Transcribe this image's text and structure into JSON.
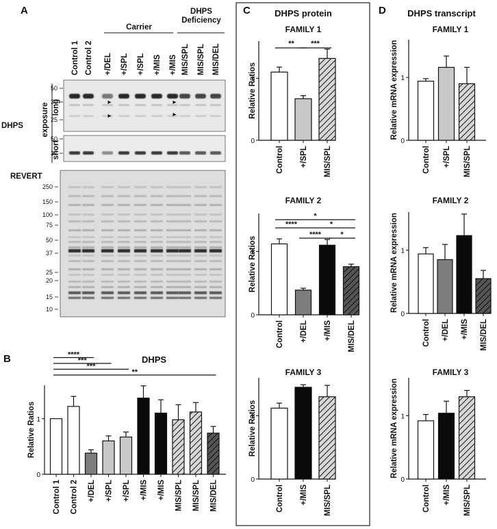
{
  "panel_letters": {
    "a": "A",
    "b": "B",
    "c": "C",
    "d": "D"
  },
  "blot": {
    "lane_labels": [
      "Control 1",
      "Control 2",
      "+/DEL",
      "+/SPL",
      "+/SPL",
      "+/MIS",
      "+/MIS",
      "MIS/SPL",
      "MIS/SPL",
      "MIS/DEL"
    ],
    "group_carrier": "Carrier",
    "group_deficiency_line1": "DHPS",
    "group_deficiency_line2": "Deficiency",
    "protein_label": "DHPS",
    "exposure_label": "exposure",
    "long_label": "long",
    "short_label": "short",
    "revert_label": "REVERT",
    "long_mw": [
      "50",
      "37",
      "25"
    ],
    "short_mw": [
      "50",
      "37"
    ],
    "revert_mw": [
      "250",
      "150",
      "100",
      "75",
      "50",
      "37",
      "25",
      "20",
      "15",
      "10"
    ],
    "arrowhead_marker": "▸"
  },
  "chart_data": [
    {
      "id": "B",
      "type": "bar",
      "title": "DHPS",
      "ylabel": "Relative Ratios",
      "ylim": [
        0,
        1.6
      ],
      "yticks": [
        "0",
        "1"
      ],
      "categories": [
        "Control 1",
        "Control 2",
        "+/DEL",
        "+/SPL",
        "+/SPL",
        "+/MIS",
        "+/MIS",
        "MIS/SPL",
        "MIS/SPL",
        "MIS/DEL"
      ],
      "values": [
        1.0,
        1.22,
        0.38,
        0.6,
        0.67,
        1.37,
        1.1,
        0.98,
        1.12,
        0.74
      ],
      "errors": [
        0.0,
        0.18,
        0.06,
        0.09,
        0.09,
        0.22,
        0.24,
        0.27,
        0.17,
        0.12
      ],
      "fills": [
        "white",
        "white",
        "gray",
        "lightgray",
        "lightgray",
        "black",
        "black",
        "hatch",
        "hatch",
        "darkhatch"
      ],
      "significance": [
        {
          "from": 0,
          "to": 2,
          "label": "****"
        },
        {
          "from": 0,
          "to": 3,
          "label": "***"
        },
        {
          "from": 0,
          "to": 4,
          "label": "***"
        },
        {
          "from": 0,
          "to": 9,
          "label": "**"
        }
      ]
    },
    {
      "id": "C1",
      "type": "bar",
      "panel_title": "DHPS protein",
      "title": "FAMILY 1",
      "ylabel": "Relative Ratios",
      "ylim": [
        0,
        1.6
      ],
      "yticks": [
        "0",
        "1"
      ],
      "categories": [
        "Control",
        "+/SPL",
        "MIS/SPL"
      ],
      "values": [
        1.1,
        0.67,
        1.32
      ],
      "errors": [
        0.08,
        0.05,
        0.15
      ],
      "fills": [
        "white",
        "lightgray",
        "hatch"
      ],
      "significance": [
        {
          "from": 0,
          "to": 1,
          "label": "**"
        },
        {
          "from": 1,
          "to": 2,
          "label": "***"
        }
      ]
    },
    {
      "id": "C2",
      "type": "bar",
      "title": "FAMILY 2",
      "ylabel": "Relative Ratios",
      "ylim": [
        0,
        1.6
      ],
      "yticks": [
        "0",
        "1"
      ],
      "categories": [
        "Control",
        "+/DEL",
        "+/MIS",
        "MIS/DEL"
      ],
      "values": [
        1.12,
        0.39,
        1.1,
        0.76
      ],
      "errors": [
        0.08,
        0.03,
        0.09,
        0.04
      ],
      "fills": [
        "white",
        "gray",
        "black",
        "darkhatch"
      ],
      "significance": [
        {
          "from": 0,
          "to": 1,
          "label": "****"
        },
        {
          "from": 0,
          "to": 3,
          "label": "*"
        },
        {
          "from": 1,
          "to": 2,
          "label": "****"
        },
        {
          "from": 1,
          "to": 3,
          "label": "*"
        },
        {
          "from": 2,
          "to": 3,
          "label": "*"
        }
      ]
    },
    {
      "id": "C3",
      "type": "bar",
      "title": "FAMILY 3",
      "ylabel": "Relative Ratios",
      "ylim": [
        0,
        1.6
      ],
      "yticks": [
        "0",
        "1"
      ],
      "categories": [
        "Control",
        "+/MIS",
        "MIS/SPL"
      ],
      "values": [
        1.12,
        1.45,
        1.3
      ],
      "errors": [
        0.08,
        0.04,
        0.18
      ],
      "fills": [
        "white",
        "black",
        "hatch"
      ],
      "significance": []
    },
    {
      "id": "D1",
      "type": "bar",
      "panel_title": "DHPS transcript",
      "title": "FAMILY 1",
      "ylabel": "Relative mRNA expression",
      "ylim": [
        0,
        1.6
      ],
      "yticks": [
        "0",
        "1"
      ],
      "categories": [
        "Control",
        "+/SPL",
        "MIS/SPL"
      ],
      "values": [
        0.94,
        1.16,
        0.9
      ],
      "errors": [
        0.04,
        0.18,
        0.26
      ],
      "fills": [
        "white",
        "lightgray",
        "hatch"
      ],
      "significance": []
    },
    {
      "id": "D2",
      "type": "bar",
      "title": "FAMILY 2",
      "ylabel": "Relative mRNA expression",
      "ylim": [
        0,
        1.6
      ],
      "yticks": [
        "0",
        "1"
      ],
      "categories": [
        "Control",
        "+/DEL",
        "+/MIS",
        "MIS/DEL"
      ],
      "values": [
        0.94,
        0.85,
        1.23,
        0.55
      ],
      "errors": [
        0.1,
        0.24,
        0.34,
        0.13
      ],
      "fills": [
        "white",
        "gray",
        "black",
        "darkhatch"
      ],
      "significance": []
    },
    {
      "id": "D3",
      "type": "bar",
      "title": "FAMILY 3",
      "ylabel": "Relative mRNA expression",
      "ylim": [
        0,
        1.6
      ],
      "yticks": [
        "0",
        "1"
      ],
      "categories": [
        "Control",
        "+/MIS",
        "MIS/SPL"
      ],
      "values": [
        0.92,
        1.04,
        1.3
      ],
      "errors": [
        0.1,
        0.19,
        0.1
      ],
      "fills": [
        "white",
        "black",
        "hatch"
      ],
      "significance": []
    }
  ],
  "colors": {
    "white": "#ffffff",
    "lightgray": "#c8c8c8",
    "gray": "#7d7d7d",
    "black": "#0a0a0a",
    "hatch_bg": "#d8d8d8",
    "darkhatch_bg": "#555555",
    "blot_bg_long": "#e9e9e9",
    "blot_bg_short": "#ececec",
    "blot_bg_revert": "#dedede",
    "band": "#1a1a1a",
    "panel_border": "#222222"
  }
}
